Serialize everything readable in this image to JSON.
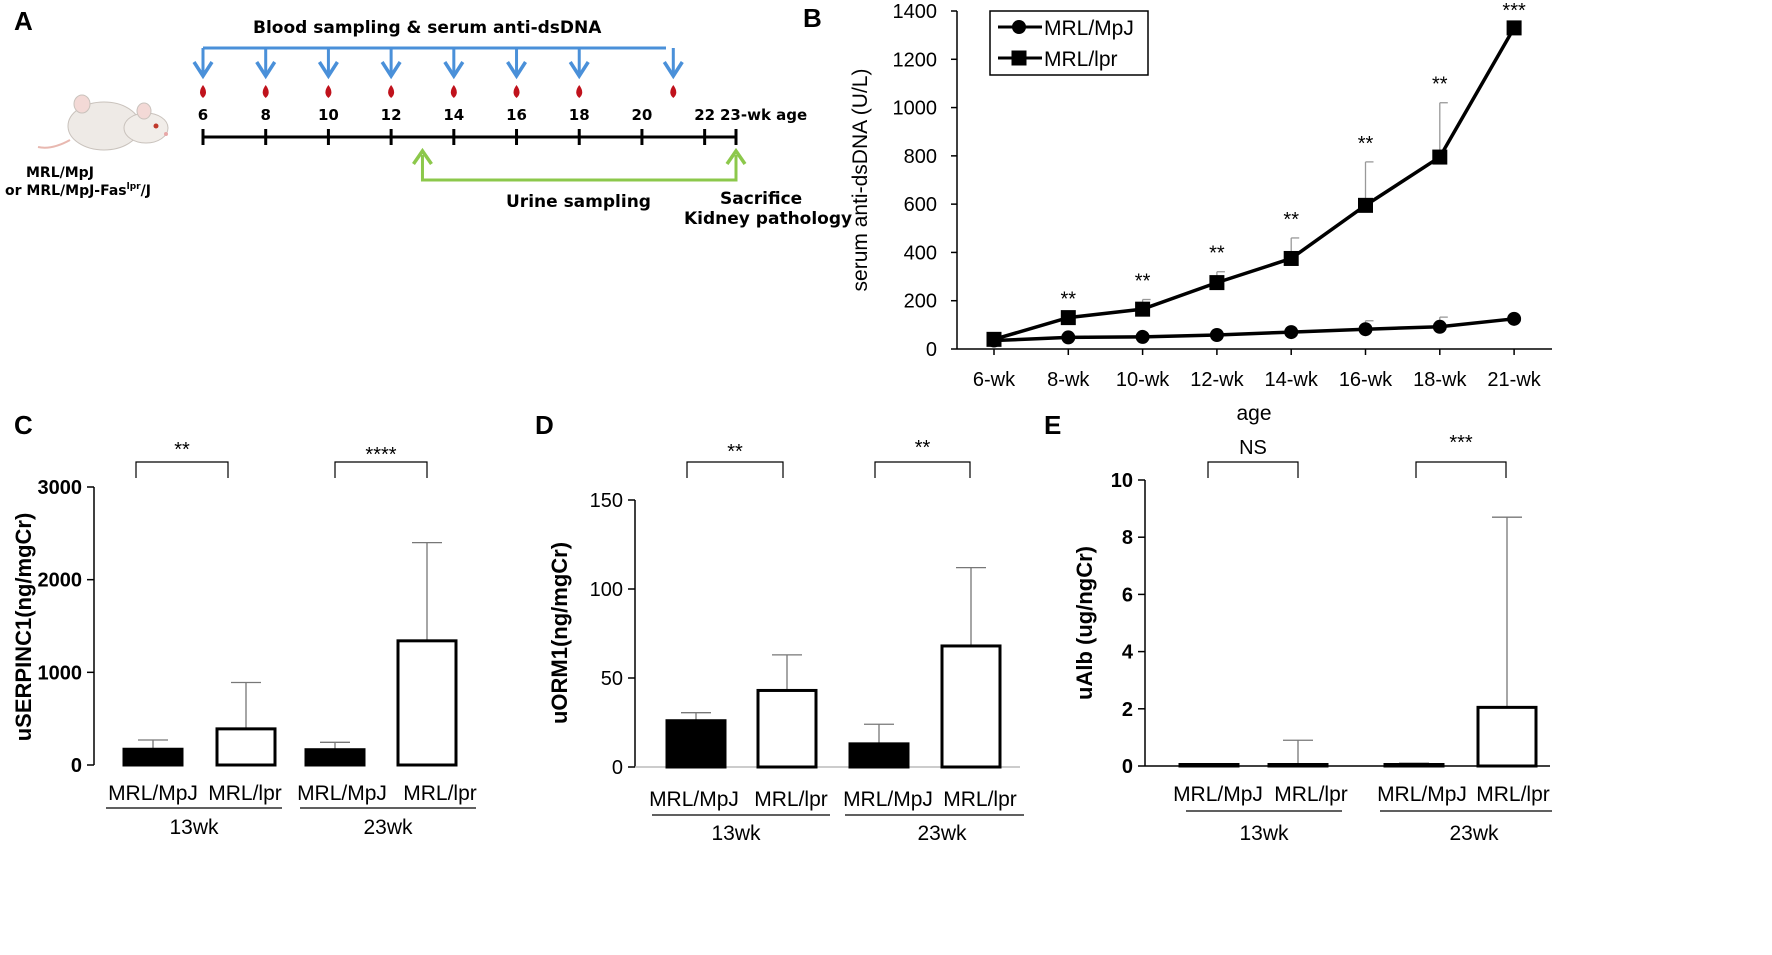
{
  "panels": {
    "a": {
      "letter": "A",
      "blood_label": "Blood sampling & serum anti-dsDNA",
      "urine_label": "Urine sampling",
      "end_label_1": "Sacrifice",
      "end_label_2": "Kidney pathology",
      "mouse_label_1": "MRL/MpJ",
      "mouse_label_2_prefix": "or MRL/MpJ-Fas",
      "mouse_label_2_sup": "lpr",
      "mouse_label_2_suffix": "/J",
      "weeks": [
        "6",
        "8",
        "10",
        "12",
        "14",
        "16",
        "18",
        "20",
        "22",
        "23-wk age"
      ],
      "blood_weeks": [
        6,
        8,
        10,
        12,
        14,
        16,
        18,
        21
      ],
      "urine_weeks": [
        13,
        23
      ],
      "colors": {
        "blood_arrow": "#4a90d9",
        "urine_arrow": "#8cc84b",
        "blood_drop": "#c0121c"
      }
    },
    "b": {
      "letter": "B"
    },
    "c": {
      "letter": "C"
    },
    "d": {
      "letter": "D"
    },
    "e": {
      "letter": "E"
    }
  },
  "chart_data": [
    {
      "id": "B",
      "type": "line",
      "categories": [
        "6-wk",
        "8-wk",
        "10-wk",
        "12-wk",
        "14-wk",
        "16-wk",
        "18-wk",
        "21-wk"
      ],
      "series": [
        {
          "name": "MRL/MpJ",
          "marker": "circle",
          "values": [
            35,
            48,
            50,
            58,
            70,
            82,
            92,
            125
          ],
          "errors": [
            0,
            0,
            0,
            0,
            0,
            35,
            40,
            0
          ]
        },
        {
          "name": "MRL/lpr",
          "marker": "square",
          "values": [
            40,
            130,
            165,
            275,
            375,
            595,
            795,
            1330
          ],
          "errors": [
            0,
            0,
            40,
            45,
            85,
            180,
            225,
            0
          ]
        }
      ],
      "significance": [
        "",
        "**",
        "**",
        "**",
        "**",
        "**",
        "**",
        "***"
      ],
      "ylabel": "serum anti-dsDNA (U/L)",
      "xlabel": "age",
      "ylim": [
        0,
        1400
      ],
      "yticks": [
        "0",
        "200",
        "400",
        "600",
        "800",
        "1000",
        "1200",
        "1400"
      ],
      "legend": "top-left"
    },
    {
      "id": "C",
      "type": "bar",
      "ylabel": "uSERPINC1(ng/mgCr)",
      "ylim": [
        0,
        3000
      ],
      "yticks": [
        "0",
        "1000",
        "2000",
        "3000"
      ],
      "groups": [
        {
          "label": "13wk",
          "significance": "**",
          "bars": [
            {
              "name": "MRL/MpJ",
              "value": 170,
              "error": 270,
              "fill": "#000000"
            },
            {
              "name": "MRL/lpr",
              "value": 390,
              "error": 890,
              "fill": "#ffffff"
            }
          ]
        },
        {
          "label": "23wk",
          "significance": "****",
          "bars": [
            {
              "name": "MRL/MpJ",
              "value": 165,
              "error": 245,
              "fill": "#000000"
            },
            {
              "name": "MRL/lpr",
              "value": 1340,
              "error": 2400,
              "fill": "#ffffff"
            }
          ]
        }
      ]
    },
    {
      "id": "D",
      "type": "bar",
      "ylabel": "uORM1(ng/mgCr)",
      "ylim": [
        0,
        150
      ],
      "yticks": [
        "0",
        "50",
        "100",
        "150"
      ],
      "groups": [
        {
          "label": "13wk",
          "significance": "**",
          "bars": [
            {
              "name": "MRL/MpJ",
              "value": 26,
              "error": 30.5,
              "fill": "#000000"
            },
            {
              "name": "MRL/lpr",
              "value": 43,
              "error": 63,
              "fill": "#ffffff"
            }
          ]
        },
        {
          "label": "23wk",
          "significance": "**",
          "bars": [
            {
              "name": "MRL/MpJ",
              "value": 13,
              "error": 24,
              "fill": "#000000"
            },
            {
              "name": "MRL/lpr",
              "value": 68,
              "error": 112,
              "fill": "#ffffff"
            }
          ]
        }
      ]
    },
    {
      "id": "E",
      "type": "bar",
      "ylabel": "uAlb (ug/ngCr)",
      "ylim": [
        0,
        10
      ],
      "yticks": [
        "0",
        "2",
        "4",
        "6",
        "8",
        "10"
      ],
      "groups": [
        {
          "label": "13wk",
          "significance": "NS",
          "bars": [
            {
              "name": "MRL/MpJ",
              "value": 0.03,
              "error": 0.08,
              "fill": "#000000"
            },
            {
              "name": "MRL/lpr",
              "value": 0.03,
              "error": 0.9,
              "fill": "#ffffff"
            }
          ]
        },
        {
          "label": "23wk",
          "significance": "***",
          "bars": [
            {
              "name": "MRL/MpJ",
              "value": 0.05,
              "error": 0.1,
              "fill": "#000000"
            },
            {
              "name": "MRL/lpr",
              "value": 2.05,
              "error": 8.7,
              "fill": "#ffffff"
            }
          ]
        }
      ]
    }
  ]
}
